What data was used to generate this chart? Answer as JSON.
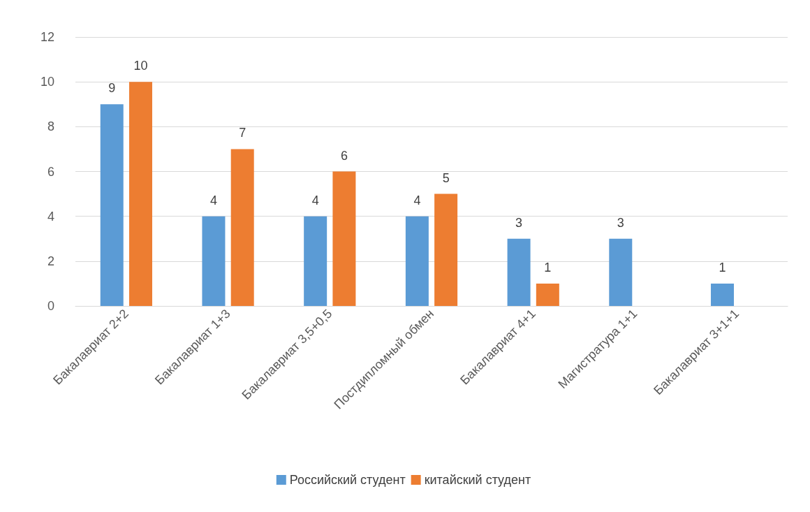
{
  "chart_data": {
    "type": "bar",
    "categories": [
      "Бакалавриат 2+2",
      "Бакалавриат 1+3",
      "Бакалавриат 3,5+0,5",
      "Постдипломный обмен",
      "Бакалавриат 4+1",
      "Магистратура 1+1",
      "Бакалавриат 3+1+1"
    ],
    "series": [
      {
        "name": "Российский студент",
        "color": "#5b9bd5",
        "values": [
          9,
          4,
          4,
          4,
          3,
          3,
          1
        ]
      },
      {
        "name": "китайский студент",
        "color": "#ed7d31",
        "values": [
          10,
          7,
          6,
          5,
          1,
          null,
          null
        ]
      }
    ],
    "ylim": [
      0,
      12
    ],
    "yticks": [
      0,
      2,
      4,
      6,
      8,
      10,
      12
    ],
    "grid": "y",
    "legend": "bottom",
    "data_labels": true
  }
}
